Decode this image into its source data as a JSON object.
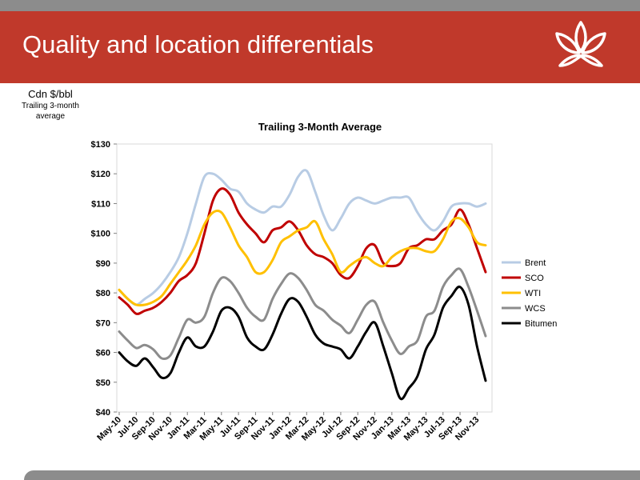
{
  "slide": {
    "title": "Quality and location differentials",
    "unit_label": "Cdn $/bbl",
    "unit_sub1": "Trailing 3-month",
    "unit_sub2": "average"
  },
  "colors": {
    "header": "#c0392b",
    "Brent": "#b8cce4",
    "SCO": "#c00000",
    "WTI": "#ffc000",
    "WCS": "#8c8c8c",
    "Bitumen": "#000000"
  },
  "chart_data": {
    "type": "line",
    "title": "Trailing 3-Month Average",
    "xlabel": "",
    "ylabel": "",
    "ylim": [
      40,
      130
    ],
    "yticks": [
      "$40",
      "$50",
      "$60",
      "$70",
      "$80",
      "$90",
      "$100",
      "$110",
      "$120",
      "$130"
    ],
    "x_tick_labels": [
      "May-10",
      "Jul-10",
      "Sep-10",
      "Nov-10",
      "Jan-11",
      "Mar-11",
      "May-11",
      "Jul-11",
      "Sep-11",
      "Nov-11",
      "Jan-12",
      "Mar-12",
      "May-12",
      "Jul-12",
      "Sep-12",
      "Nov-12",
      "Jan-13",
      "Mar-13",
      "May-13",
      "Jul-13",
      "Sep-13",
      "Nov-13"
    ],
    "x": [
      "May-10",
      "Jun-10",
      "Jul-10",
      "Aug-10",
      "Sep-10",
      "Oct-10",
      "Nov-10",
      "Dec-10",
      "Jan-11",
      "Feb-11",
      "Mar-11",
      "Apr-11",
      "May-11",
      "Jun-11",
      "Jul-11",
      "Aug-11",
      "Sep-11",
      "Oct-11",
      "Nov-11",
      "Dec-11",
      "Jan-12",
      "Feb-12",
      "Mar-12",
      "Apr-12",
      "May-12",
      "Jun-12",
      "Jul-12",
      "Aug-12",
      "Sep-12",
      "Oct-12",
      "Nov-12",
      "Dec-12",
      "Jan-13",
      "Feb-13",
      "Mar-13",
      "Apr-13",
      "May-13",
      "Jun-13",
      "Jul-13",
      "Aug-13",
      "Sep-13",
      "Oct-13",
      "Nov-13",
      "Dec-13"
    ],
    "legend_position": "right",
    "grid": false,
    "series": [
      {
        "name": "Brent",
        "values": [
          81,
          78,
          76,
          78,
          80,
          83,
          87,
          92,
          100,
          110,
          119,
          120,
          118,
          115,
          114,
          110,
          108,
          107,
          109,
          109,
          113,
          119,
          121,
          114,
          106,
          101,
          105,
          110,
          112,
          111,
          110,
          111,
          112,
          112,
          112,
          107,
          103,
          101,
          104,
          109,
          110,
          110,
          109,
          110
        ]
      },
      {
        "name": "SCO",
        "values": [
          78.5,
          76,
          73,
          74,
          75,
          77,
          80,
          84,
          86,
          90,
          100,
          111,
          115,
          113,
          107,
          103,
          100,
          97,
          101,
          102,
          104,
          101,
          96,
          93,
          92,
          90,
          86,
          85,
          89,
          95,
          96,
          90,
          89,
          90,
          95,
          96,
          98,
          98,
          101,
          103,
          108,
          103,
          95,
          87
        ]
      },
      {
        "name": "WTI",
        "values": [
          81,
          78,
          76,
          76,
          77,
          79,
          83,
          87,
          91,
          96,
          103,
          107,
          107,
          102,
          96,
          92,
          87,
          87,
          91,
          97,
          99,
          101,
          102,
          104,
          98,
          93,
          87,
          89,
          91,
          92,
          90,
          89,
          92,
          94,
          95,
          95,
          94,
          94,
          98,
          104,
          105,
          102,
          97,
          96
        ]
      },
      {
        "name": "WCS",
        "values": [
          67,
          64,
          61.5,
          62.5,
          61,
          58,
          59,
          65,
          71,
          70,
          72,
          80,
          85,
          84,
          80,
          75,
          72,
          71,
          78,
          83,
          86.5,
          85,
          81,
          76,
          74,
          71,
          69,
          66.5,
          71,
          76,
          77,
          70,
          64,
          59.5,
          62,
          64,
          72,
          74,
          82,
          86,
          88,
          82,
          74,
          65.5
        ]
      },
      {
        "name": "Bitumen",
        "values": [
          60,
          57,
          55.5,
          58,
          55,
          51.5,
          53,
          60,
          65,
          62,
          62,
          67,
          74,
          75,
          72,
          65,
          62,
          61,
          66,
          73,
          78,
          77,
          72,
          66,
          63,
          62,
          61,
          58,
          62,
          67,
          70,
          62,
          53,
          44.5,
          48,
          52,
          61,
          66,
          75,
          79,
          82,
          76,
          62,
          50.5
        ]
      }
    ]
  }
}
